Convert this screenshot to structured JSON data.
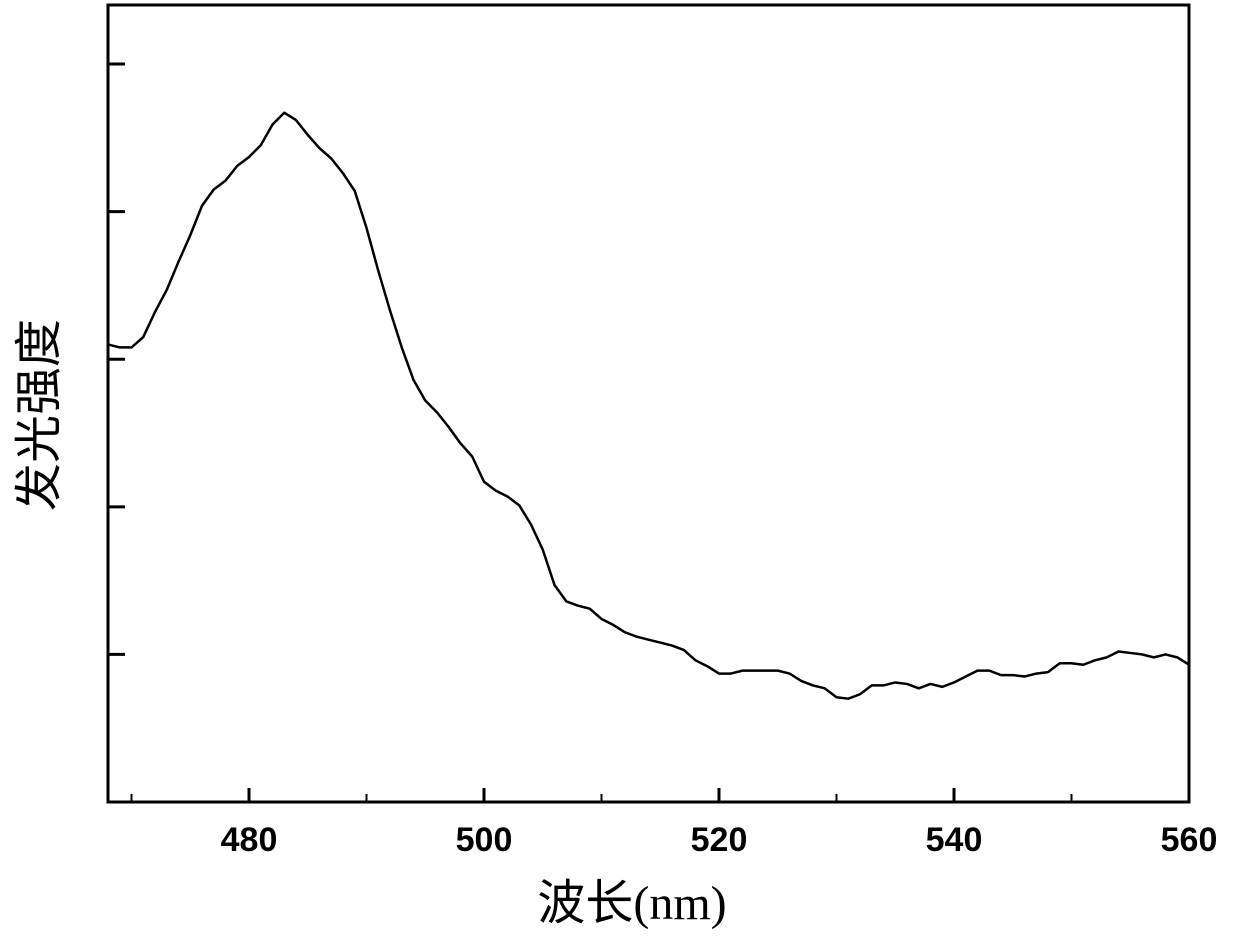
{
  "chart_data": {
    "type": "line",
    "xlabel": "波长(nm)",
    "ylabel": "发光强度",
    "x": [
      468,
      469,
      470,
      471,
      472,
      473,
      474,
      475,
      476,
      477,
      478,
      479,
      480,
      481,
      482,
      483,
      484,
      485,
      486,
      487,
      488,
      489,
      490,
      491,
      492,
      493,
      494,
      495,
      496,
      497,
      498,
      499,
      500,
      501,
      502,
      503,
      504,
      505,
      506,
      507,
      508,
      509,
      510,
      511,
      512,
      513,
      514,
      515,
      516,
      517,
      518,
      519,
      520,
      521,
      522,
      523,
      524,
      525,
      526,
      527,
      528,
      529,
      530,
      531,
      532,
      533,
      534,
      535,
      536,
      537,
      538,
      539,
      540,
      541,
      542,
      543,
      544,
      545,
      546,
      547,
      548,
      549,
      550,
      551,
      552,
      553,
      554,
      555,
      556,
      557,
      558,
      559,
      560
    ],
    "series": [
      {
        "color": "#000000",
        "values": [
          3.1,
          3.08,
          3.08,
          3.15,
          3.32,
          3.47,
          3.66,
          3.84,
          4.04,
          4.15,
          4.21,
          4.31,
          4.37,
          4.45,
          4.59,
          4.67,
          4.62,
          4.52,
          4.43,
          4.36,
          4.26,
          4.14,
          3.89,
          3.6,
          3.33,
          3.08,
          2.86,
          2.72,
          2.64,
          2.54,
          2.43,
          2.34,
          2.17,
          2.11,
          2.07,
          2.01,
          1.88,
          1.71,
          1.47,
          1.36,
          1.33,
          1.31,
          1.24,
          1.2,
          1.15,
          1.12,
          1.1,
          1.08,
          1.06,
          1.03,
          0.96,
          0.92,
          0.87,
          0.87,
          0.89,
          0.89,
          0.89,
          0.89,
          0.87,
          0.82,
          0.79,
          0.77,
          0.71,
          0.7,
          0.73,
          0.79,
          0.79,
          0.81,
          0.8,
          0.77,
          0.8,
          0.78,
          0.81,
          0.85,
          0.89,
          0.89,
          0.86,
          0.86,
          0.85,
          0.87,
          0.88,
          0.94,
          0.94,
          0.93,
          0.96,
          0.98,
          1.02,
          1.01,
          1.0,
          0.98,
          1.0,
          0.98,
          0.93
        ]
      }
    ],
    "xlim": [
      468,
      560
    ],
    "xticks": [
      480,
      500,
      520,
      540,
      560
    ],
    "xminorticks": [
      470,
      490,
      510,
      530,
      550
    ],
    "ylim": [
      0,
      5.4
    ],
    "yticks": [
      1,
      2,
      3,
      4,
      5
    ]
  }
}
